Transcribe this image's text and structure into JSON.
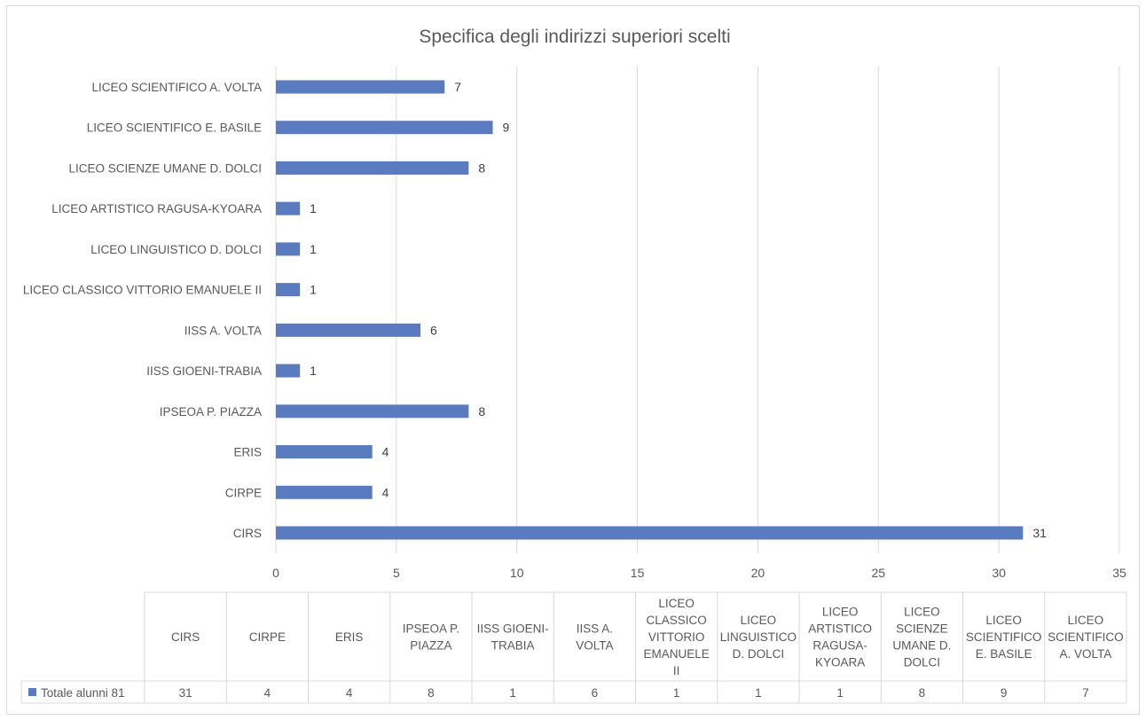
{
  "chart_data": {
    "type": "bar",
    "orientation": "horizontal",
    "title": "Specifica degli indirizzi superiori scelti",
    "categories": [
      "CIRS",
      "CIRPE",
      "ERIS",
      "IPSEOA P. PIAZZA",
      "IISS GIOENI-TRABIA",
      "IISS A. VOLTA",
      "LICEO CLASSICO VITTORIO EMANUELE II",
      "LICEO LINGUISTICO D. DOLCI",
      "LICEO ARTISTICO RAGUSA-KYOARA",
      "LICEO SCIENZE UMANE D. DOLCI",
      "LICEO SCIENTIFICO E. BASILE",
      "LICEO SCIENTIFICO A. VOLTA"
    ],
    "table_headers": [
      [
        "CIRS"
      ],
      [
        "CIRPE"
      ],
      [
        "ERIS"
      ],
      [
        "IPSEOA P.",
        "PIAZZA"
      ],
      [
        "IISS GIOENI-",
        "TRABIA"
      ],
      [
        "IISS A.",
        "VOLTA"
      ],
      [
        "LICEO",
        "CLASSICO",
        "VITTORIO",
        "EMANUELE",
        "II"
      ],
      [
        "LICEO",
        "LINGUISTICO",
        "D. DOLCI"
      ],
      [
        "LICEO",
        "ARTISTICO",
        "RAGUSA-",
        "KYOARA"
      ],
      [
        "LICEO",
        "SCIENZE",
        "UMANE D.",
        "DOLCI"
      ],
      [
        "LICEO",
        "SCIENTIFICO",
        "E. BASILE"
      ],
      [
        "LICEO",
        "SCIENTIFICO",
        "A. VOLTA"
      ]
    ],
    "series": [
      {
        "name": "Totale alunni 81",
        "values": [
          31,
          4,
          4,
          8,
          1,
          6,
          1,
          1,
          1,
          8,
          9,
          7
        ],
        "color": "#5b7bc0"
      }
    ],
    "xlim": [
      0,
      35
    ],
    "x_ticks": [
      0,
      5,
      10,
      15,
      20,
      25,
      30,
      35
    ],
    "grid": true,
    "legend": "data-table",
    "data_labels": true
  }
}
